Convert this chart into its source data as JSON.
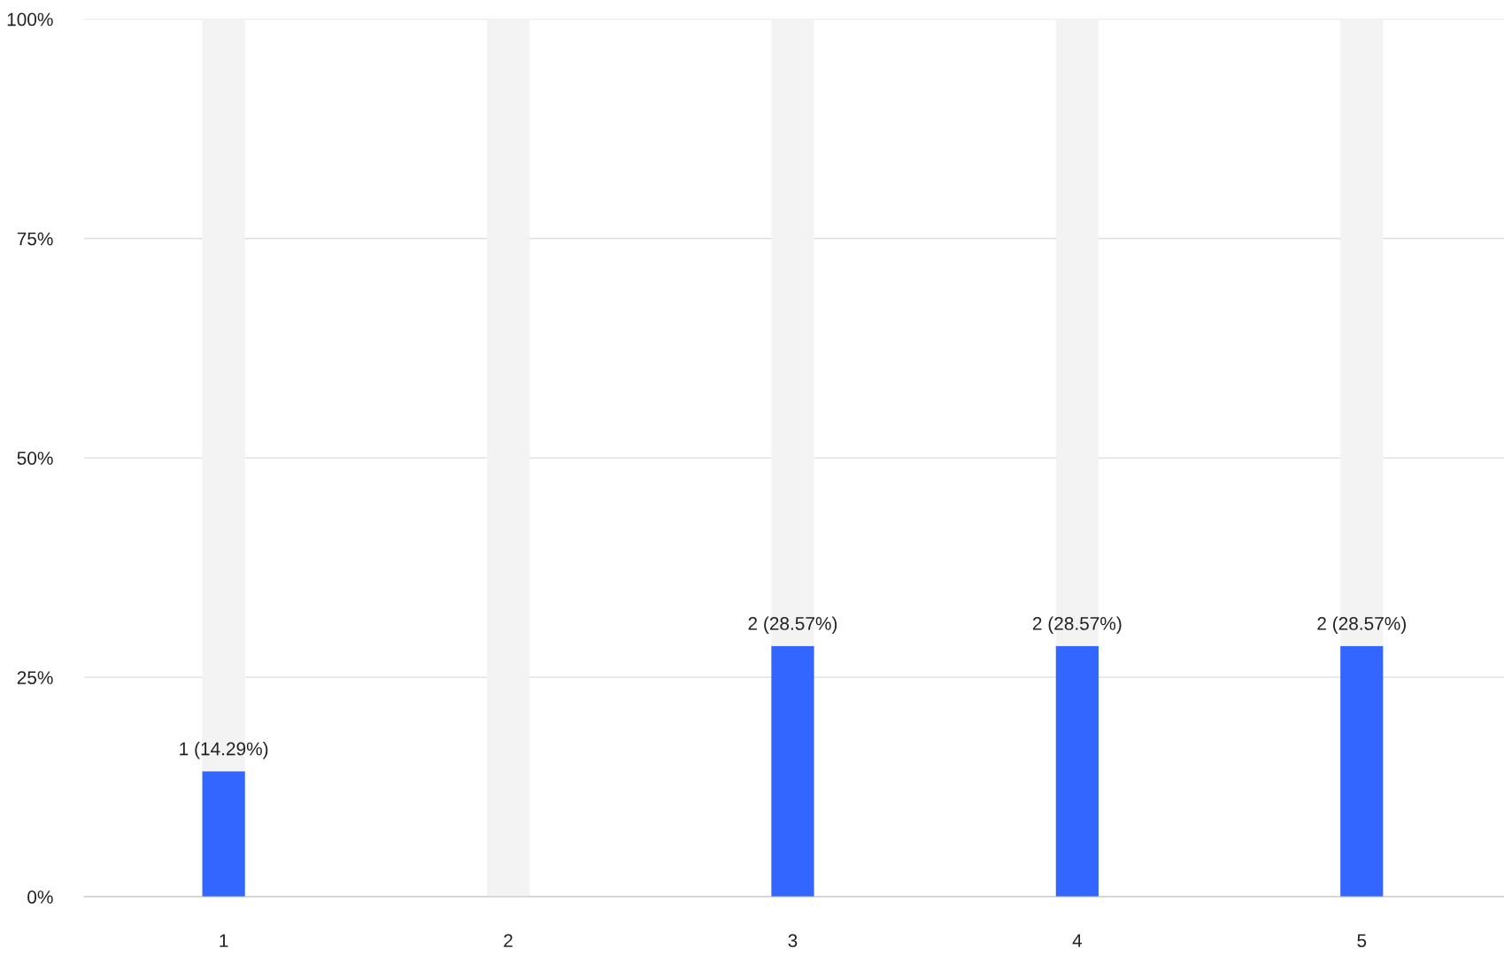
{
  "chart_data": {
    "type": "bar",
    "stacked": true,
    "categories": [
      "1",
      "2",
      "3",
      "4",
      "5"
    ],
    "series": [
      {
        "color": "#3366ff",
        "values": [
          14.29,
          0,
          28.57,
          28.57,
          28.57
        ],
        "value_labels": [
          "1 (14.29%)",
          null,
          "2 (28.57%)",
          "2 (28.57%)",
          "2 (28.57%)"
        ]
      },
      {
        "color": "#f3f3f3",
        "values": [
          85.71,
          100,
          71.43,
          71.43,
          71.43
        ]
      }
    ],
    "ylim": [
      0,
      100
    ],
    "yticks": [
      {
        "value": 0,
        "label": "0%"
      },
      {
        "value": 25,
        "label": "25%"
      },
      {
        "value": 50,
        "label": "50%"
      },
      {
        "value": 75,
        "label": "75%"
      },
      {
        "value": 100,
        "label": "100%"
      }
    ],
    "grid": "y"
  }
}
